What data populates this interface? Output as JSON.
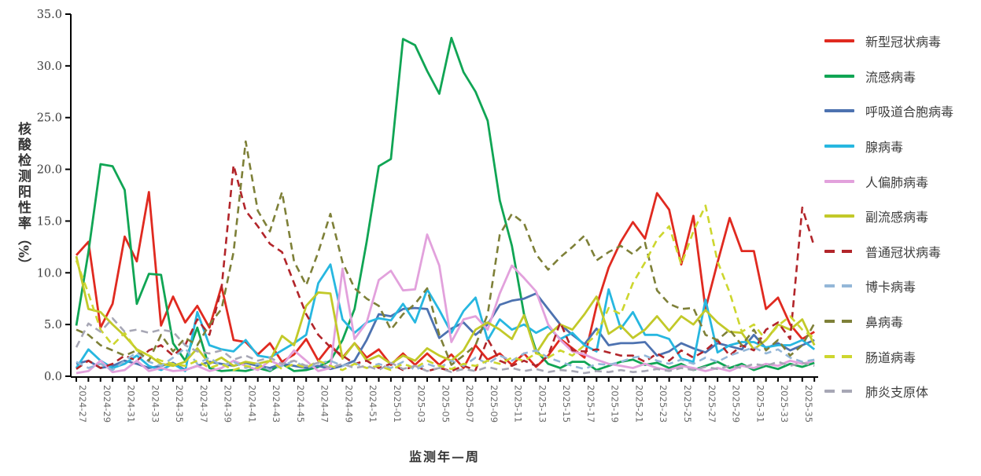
{
  "titles": {
    "y_axis": "核酸检测阳性率",
    "y_axis_unit": "（%）",
    "x_axis": "监测年—周"
  },
  "chart_data": {
    "type": "line",
    "title": "",
    "xlabel": "监测年—周",
    "ylabel": "核酸检测阳性率（%）",
    "ylim": [
      0,
      35
    ],
    "y_tick_step": 5,
    "y_tick_labels": [
      "0.0",
      "5.0",
      "10.0",
      "15.0",
      "20.0",
      "25.0",
      "30.0",
      "35.0"
    ],
    "grid": false,
    "legend_position": "right",
    "x_label_every": 2,
    "categories": [
      "2024-27",
      "2024-28",
      "2024-29",
      "2024-30",
      "2024-31",
      "2024-32",
      "2024-33",
      "2024-34",
      "2024-35",
      "2024-36",
      "2024-37",
      "2024-38",
      "2024-39",
      "2024-40",
      "2024-41",
      "2024-42",
      "2024-43",
      "2024-44",
      "2024-45",
      "2024-46",
      "2024-47",
      "2024-48",
      "2024-49",
      "2024-50",
      "2024-51",
      "2024-52",
      "2025-01",
      "2025-02",
      "2025-03",
      "2025-04",
      "2025-05",
      "2025-06",
      "2025-07",
      "2025-08",
      "2025-09",
      "2025-10",
      "2025-11",
      "2025-12",
      "2025-13",
      "2025-14",
      "2025-15",
      "2025-16",
      "2025-17",
      "2025-18",
      "2025-19",
      "2025-20",
      "2025-21",
      "2025-22",
      "2025-23",
      "2025-24",
      "2025-25",
      "2025-26",
      "2025-27",
      "2025-28",
      "2025-29",
      "2025-30",
      "2025-31",
      "2025-32",
      "2025-33",
      "2025-34",
      "2025-35",
      "2025-36"
    ],
    "series": [
      {
        "name": "新型冠状病毒",
        "color": "#e02a20",
        "dashed": false,
        "values": [
          11.7,
          13.0,
          4.7,
          7.0,
          13.5,
          11.1,
          17.8,
          4.9,
          7.7,
          5.2,
          6.8,
          4.7,
          8.7,
          3.5,
          3.3,
          2.1,
          3.2,
          1.4,
          2.1,
          3.6,
          1.5,
          3.0,
          1.8,
          3.2,
          1.8,
          2.6,
          1.1,
          2.2,
          1.1,
          2.2,
          1.1,
          2.1,
          0.8,
          3.0,
          1.6,
          2.2,
          1.1,
          2.2,
          0.9,
          2.0,
          3.6,
          2.7,
          1.8,
          6.8,
          10.5,
          13.0,
          14.9,
          13.3,
          17.7,
          16.1,
          10.8,
          15.5,
          6.5,
          11.0,
          15.3,
          12.1,
          12.1,
          6.5,
          7.6,
          5.0,
          3.6,
          4.3
        ]
      },
      {
        "name": "流感病毒",
        "color": "#10a554",
        "dashed": false,
        "values": [
          4.9,
          12.0,
          20.5,
          20.3,
          18.0,
          7.0,
          9.9,
          9.8,
          3.2,
          1.5,
          4.7,
          0.8,
          0.5,
          0.6,
          0.5,
          0.8,
          0.5,
          1.2,
          0.5,
          0.6,
          0.9,
          1.5,
          3.5,
          6.5,
          13.0,
          20.3,
          21.0,
          32.6,
          32.0,
          29.5,
          27.3,
          32.7,
          29.4,
          27.5,
          24.7,
          17.0,
          12.6,
          6.0,
          2.5,
          1.2,
          0.8,
          1.4,
          1.4,
          0.6,
          1.0,
          1.4,
          1.6,
          1.1,
          1.3,
          0.8,
          1.2,
          0.6,
          1.0,
          1.4,
          0.8,
          1.2,
          0.6,
          1.0,
          0.7,
          1.2,
          0.9,
          1.3
        ]
      },
      {
        "name": "呼吸道合胞病毒",
        "color": "#4d72b0",
        "dashed": false,
        "values": [
          1.2,
          1.5,
          0.8,
          1.0,
          1.5,
          1.2,
          0.8,
          1.0,
          1.3,
          0.6,
          1.0,
          1.4,
          1.2,
          1.0,
          1.3,
          1.0,
          0.8,
          1.2,
          1.0,
          0.8,
          1.0,
          0.7,
          1.0,
          1.5,
          3.5,
          6.0,
          5.8,
          6.5,
          6.6,
          6.5,
          3.7,
          4.6,
          5.2,
          4.0,
          5.0,
          6.9,
          7.3,
          7.5,
          8.0,
          6.5,
          5.0,
          4.0,
          3.1,
          4.6,
          3.0,
          3.2,
          3.2,
          3.3,
          2.0,
          2.4,
          3.2,
          2.7,
          2.3,
          3.2,
          2.9,
          2.6,
          4.0,
          2.7,
          3.2,
          2.5,
          3.0,
          3.5
        ]
      },
      {
        "name": "腺病毒",
        "color": "#27b7e0",
        "dashed": false,
        "values": [
          0.8,
          2.6,
          1.5,
          0.8,
          1.2,
          2.0,
          1.0,
          0.6,
          1.2,
          0.5,
          6.2,
          3.0,
          2.6,
          2.4,
          3.5,
          2.0,
          1.8,
          2.5,
          3.2,
          4.0,
          9.0,
          10.8,
          5.5,
          4.2,
          5.2,
          5.6,
          5.4,
          7.0,
          5.2,
          8.4,
          6.4,
          4.2,
          6.3,
          7.6,
          3.5,
          5.5,
          4.5,
          5.0,
          4.2,
          4.8,
          3.6,
          4.2,
          3.0,
          2.4,
          8.4,
          4.6,
          6.2,
          4.0,
          4.0,
          3.6,
          1.7,
          1.4,
          7.4,
          2.3,
          3.0,
          3.3,
          3.3,
          2.8,
          3.0,
          3.0,
          3.5,
          2.6
        ]
      },
      {
        "name": "人偏肺病毒",
        "color": "#e2a1dc",
        "dashed": false,
        "values": [
          0.3,
          0.5,
          1.5,
          0.4,
          0.6,
          1.5,
          0.5,
          0.8,
          0.5,
          0.6,
          1.0,
          0.5,
          0.8,
          1.5,
          1.0,
          0.6,
          1.5,
          1.0,
          2.5,
          1.5,
          0.5,
          0.8,
          10.4,
          3.6,
          5.2,
          9.3,
          10.2,
          8.3,
          8.4,
          13.7,
          10.7,
          3.3,
          5.5,
          5.8,
          4.5,
          8.0,
          10.7,
          9.5,
          8.2,
          5.0,
          3.5,
          2.4,
          2.1,
          1.6,
          1.2,
          1.0,
          0.8,
          1.2,
          0.8,
          0.6,
          1.0,
          0.8,
          0.5,
          0.8,
          0.5,
          1.0,
          0.8,
          1.2,
          1.0,
          1.5,
          1.2,
          1.5
        ]
      },
      {
        "name": "副流感病毒",
        "color": "#c2c929",
        "dashed": false,
        "values": [
          11.6,
          6.5,
          6.2,
          5.0,
          3.9,
          2.6,
          2.0,
          1.2,
          1.0,
          1.4,
          2.7,
          1.2,
          1.8,
          1.0,
          1.4,
          1.2,
          1.5,
          3.9,
          3.0,
          6.8,
          8.1,
          8.0,
          1.7,
          3.2,
          1.5,
          2.0,
          1.2,
          2.0,
          1.5,
          2.7,
          2.0,
          1.5,
          2.5,
          4.5,
          5.2,
          4.5,
          3.6,
          5.9,
          2.2,
          4.0,
          5.0,
          4.5,
          6.0,
          7.7,
          4.1,
          4.9,
          3.7,
          4.5,
          5.8,
          4.4,
          5.8,
          5.0,
          6.4,
          5.2,
          4.3,
          4.2,
          2.6,
          3.5,
          5.0,
          4.5,
          5.5,
          3.0
        ]
      },
      {
        "name": "普通冠状病毒",
        "color": "#b2252a",
        "dashed": true,
        "values": [
          0.7,
          1.5,
          0.8,
          1.2,
          2.0,
          1.5,
          2.5,
          3.0,
          2.0,
          3.0,
          5.5,
          4.0,
          8.5,
          20.4,
          16.0,
          14.5,
          12.8,
          12.0,
          9.0,
          6.0,
          4.0,
          2.8,
          2.0,
          1.2,
          1.5,
          0.8,
          1.2,
          0.6,
          1.0,
          0.5,
          0.8,
          0.5,
          1.0,
          0.6,
          3.6,
          1.5,
          1.0,
          1.5,
          1.0,
          2.0,
          5.2,
          2.5,
          2.4,
          2.6,
          2.3,
          2.0,
          2.0,
          1.4,
          2.2,
          1.5,
          2.5,
          1.8,
          2.5,
          3.5,
          2.0,
          3.0,
          2.5,
          4.5,
          5.2,
          3.6,
          16.3,
          12.5
        ]
      },
      {
        "name": "博卡病毒",
        "color": "#94b7d8",
        "dashed": true,
        "values": [
          1.4,
          0.8,
          1.2,
          0.6,
          1.5,
          2.3,
          1.4,
          1.0,
          1.8,
          2.7,
          1.2,
          1.8,
          1.0,
          1.4,
          0.8,
          1.2,
          0.6,
          1.0,
          1.5,
          0.8,
          1.2,
          1.5,
          1.0,
          1.3,
          0.8,
          1.2,
          0.8,
          1.4,
          0.6,
          1.2,
          0.8,
          1.5,
          1.0,
          1.8,
          1.2,
          2.0,
          1.5,
          2.2,
          2.5,
          1.8,
          1.4,
          1.0,
          0.7,
          1.2,
          1.1,
          1.4,
          1.8,
          2.0,
          1.5,
          1.2,
          1.6,
          1.2,
          1.8,
          1.4,
          2.0,
          2.4,
          2.8,
          2.2,
          2.6,
          1.8,
          1.4,
          1.6
        ]
      },
      {
        "name": "鼻病毒",
        "color": "#7e8038",
        "dashed": true,
        "values": [
          4.5,
          4.0,
          3.0,
          2.5,
          2.0,
          2.5,
          1.5,
          4.0,
          2.4,
          3.7,
          3.0,
          5.0,
          6.5,
          12.0,
          22.7,
          16.0,
          14.0,
          17.8,
          11.1,
          8.8,
          12.0,
          15.7,
          11.0,
          8.5,
          7.5,
          6.8,
          4.5,
          6.0,
          7.0,
          8.5,
          4.0,
          1.1,
          2.0,
          3.0,
          6.0,
          13.7,
          15.7,
          14.8,
          11.8,
          10.3,
          11.5,
          12.5,
          13.6,
          11.2,
          12.0,
          12.6,
          11.8,
          12.9,
          8.3,
          7.0,
          6.5,
          6.6,
          4.0,
          3.5,
          4.5,
          3.0,
          4.5,
          2.5,
          3.5,
          2.0,
          3.0,
          5.1
        ]
      },
      {
        "name": "肠道病毒",
        "color": "#cdd62e",
        "dashed": true,
        "values": [
          11.2,
          8.0,
          4.5,
          3.0,
          4.2,
          2.5,
          2.0,
          1.5,
          1.2,
          1.0,
          1.5,
          0.8,
          1.2,
          0.6,
          1.0,
          0.8,
          1.5,
          0.7,
          1.2,
          0.8,
          1.5,
          1.0,
          0.6,
          1.2,
          0.8,
          1.0,
          0.6,
          1.2,
          0.8,
          1.5,
          1.0,
          0.7,
          1.2,
          1.0,
          1.5,
          1.2,
          1.8,
          1.5,
          2.2,
          1.8,
          2.5,
          2.0,
          3.0,
          4.0,
          6.6,
          6.0,
          9.0,
          11.0,
          13.2,
          14.5,
          10.8,
          14.0,
          16.5,
          11.1,
          8.1,
          4.3,
          5.0,
          3.5,
          4.9,
          5.8,
          4.5,
          3.7
        ]
      },
      {
        "name": "肺炎支原体",
        "color": "#a7a7b5",
        "dashed": true,
        "values": [
          2.8,
          5.1,
          4.3,
          5.6,
          4.3,
          4.5,
          4.2,
          4.5,
          4.3,
          3.0,
          2.4,
          2.2,
          2.5,
          1.6,
          2.0,
          1.5,
          1.8,
          1.2,
          1.5,
          1.0,
          1.3,
          0.8,
          1.2,
          0.8,
          1.0,
          0.6,
          1.3,
          0.7,
          1.0,
          0.5,
          0.8,
          0.4,
          0.7,
          0.5,
          0.9,
          0.6,
          0.8,
          0.5,
          0.7,
          0.4,
          0.6,
          0.5,
          0.3,
          0.5,
          0.4,
          0.6,
          0.4,
          0.5,
          0.7,
          0.5,
          0.8,
          0.6,
          0.9,
          0.7,
          1.0,
          0.8,
          1.2,
          1.0,
          1.4,
          1.0,
          1.3,
          1.0
        ]
      }
    ]
  }
}
